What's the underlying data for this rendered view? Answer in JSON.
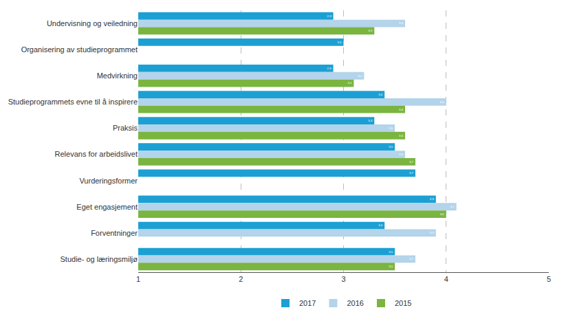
{
  "chart_data": {
    "type": "bar",
    "orientation": "horizontal",
    "categories": [
      "Undervisning og veiledning",
      "Organisering av studieprogrammet",
      "Medvirkning",
      "Studieprogrammets evne til å inspirere",
      "Praksis",
      "Relevans for arbeidslivet",
      "Vurderingsformer",
      "Eget engasjement",
      "Forventninger",
      "Studie- og læringsmiljø"
    ],
    "series": [
      {
        "name": "2017",
        "color": "#1ca0d4",
        "values": [
          2.9,
          3.0,
          2.9,
          3.4,
          3.3,
          3.5,
          3.7,
          3.9,
          3.4,
          3.5
        ],
        "value_labels": [
          "2,9",
          "3,0",
          "2,9",
          "3,4",
          "3,3",
          "3,5",
          "3,7",
          "3,9",
          "3,4",
          "3,5"
        ]
      },
      {
        "name": "2016",
        "color": "#b3d4ea",
        "values": [
          3.6,
          null,
          3.2,
          4.0,
          3.5,
          3.6,
          null,
          4.1,
          3.9,
          3.7
        ],
        "value_labels": [
          "3,6",
          null,
          "3,2",
          "4,0",
          "3,5",
          "3,6",
          null,
          "4,1",
          "3,9",
          "3,7"
        ]
      },
      {
        "name": "2015",
        "color": "#7ab540",
        "values": [
          3.3,
          null,
          3.1,
          3.6,
          3.6,
          3.7,
          null,
          4.0,
          null,
          3.5
        ],
        "value_labels": [
          "3,3",
          null,
          "3,1",
          "3,6",
          "3,6",
          "3,7",
          null,
          "4,0",
          null,
          "3,5"
        ]
      }
    ],
    "xlim": [
      1,
      5
    ],
    "xticks": [
      1,
      2,
      3,
      4,
      5
    ],
    "grid": true,
    "data_labels": true,
    "legend": "bottom"
  }
}
